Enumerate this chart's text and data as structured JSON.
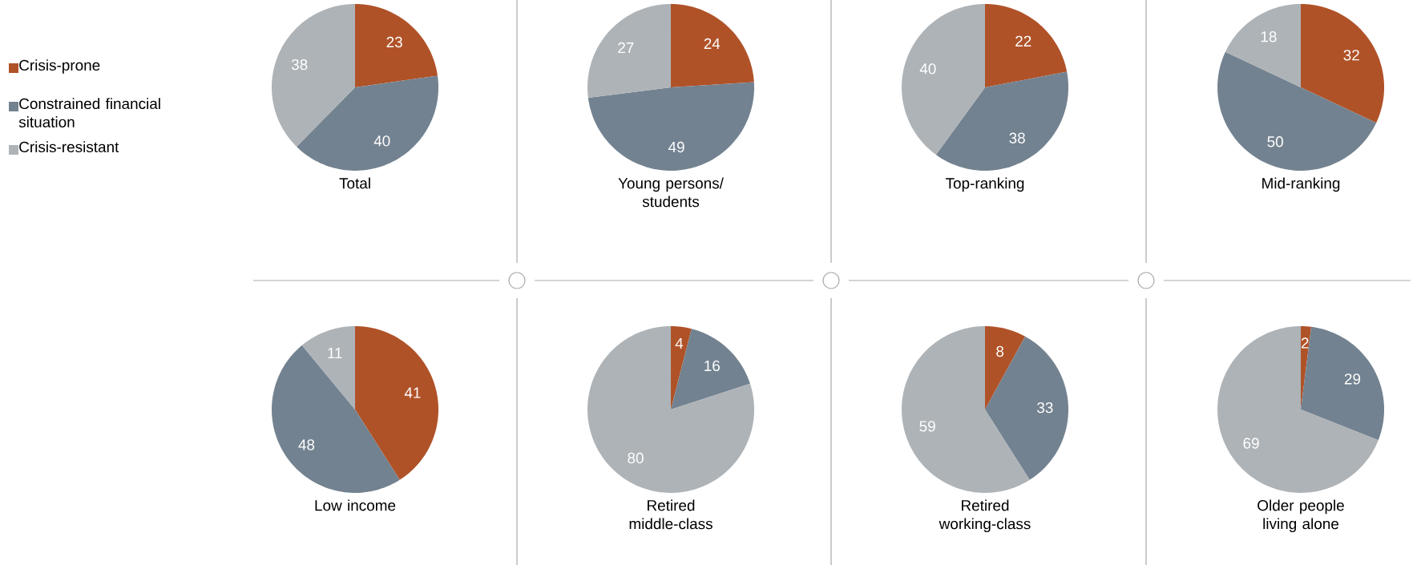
{
  "chart_data": [
    {
      "type": "pie",
      "title": "Total",
      "categories": [
        "Crisis-prone",
        "Constrained financial situation",
        "Crisis-resistant"
      ],
      "values": [
        23,
        40,
        38
      ],
      "colors": [
        "#b05228",
        "#738290",
        "#aeb3b7"
      ],
      "data_labels": true,
      "legend": "left"
    },
    {
      "type": "pie",
      "title": "Young persons/ students",
      "values": [
        24,
        49,
        27
      ],
      "colors": [
        "#b05228",
        "#738290",
        "#aeb3b7"
      ],
      "data_labels": true
    },
    {
      "type": "pie",
      "title": "Top-ranking",
      "values": [
        22,
        38,
        40
      ],
      "colors": [
        "#b05228",
        "#738290",
        "#aeb3b7"
      ],
      "data_labels": true
    },
    {
      "type": "pie",
      "title": "Mid-ranking",
      "values": [
        32,
        50,
        18
      ],
      "colors": [
        "#b05228",
        "#738290",
        "#aeb3b7"
      ],
      "data_labels": true
    },
    {
      "type": "pie",
      "title": "Low income",
      "values": [
        41,
        48,
        11
      ],
      "colors": [
        "#b05228",
        "#738290",
        "#aeb3b7"
      ],
      "data_labels": true
    },
    {
      "type": "pie",
      "title": "Retired middle-class",
      "values": [
        4,
        16,
        80
      ],
      "colors": [
        "#b05228",
        "#738290",
        "#aeb3b7"
      ],
      "data_labels": true
    },
    {
      "type": "pie",
      "title": "Retired working-class",
      "values": [
        8,
        33,
        59
      ],
      "colors": [
        "#b05228",
        "#738290",
        "#aeb3b7"
      ],
      "data_labels": true
    },
    {
      "type": "pie",
      "title": "Older people living alone",
      "values": [
        2,
        29,
        69
      ],
      "colors": [
        "#b05228",
        "#738290",
        "#aeb3b7"
      ],
      "data_labels": true
    }
  ]
}
